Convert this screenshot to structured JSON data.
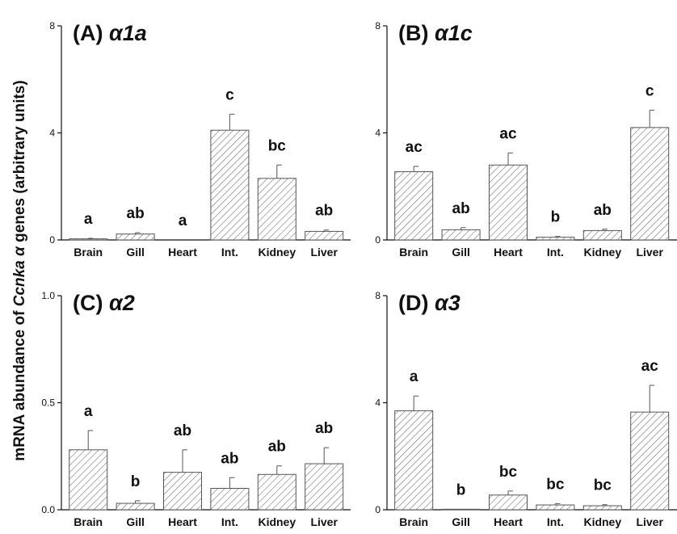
{
  "ylabel": {
    "prefix": "mRNA abundance of ",
    "gene": "Ccnka α",
    "suffix": " genes (arbitrary units)"
  },
  "chart_data": [
    {
      "type": "bar",
      "title_letter": "(A)",
      "title_gene": "α1a",
      "categories": [
        "Brain",
        "Gill",
        "Heart",
        "Int.",
        "Kidney",
        "Liver"
      ],
      "values": [
        0.04,
        0.22,
        0.0,
        4.1,
        2.3,
        0.32
      ],
      "errors": [
        0.02,
        0.05,
        0.0,
        0.6,
        0.5,
        0.05
      ],
      "sig": [
        "a",
        "ab",
        "a",
        "c",
        "bc",
        "ab"
      ],
      "ylim": [
        0,
        8
      ],
      "yticks": [
        "0",
        "4",
        "8"
      ]
    },
    {
      "type": "bar",
      "title_letter": "(B)",
      "title_gene": "α1c",
      "categories": [
        "Brain",
        "Gill",
        "Heart",
        "Int.",
        "Kidney",
        "Liver"
      ],
      "values": [
        2.55,
        0.38,
        2.8,
        0.1,
        0.35,
        4.2
      ],
      "errors": [
        0.2,
        0.08,
        0.45,
        0.03,
        0.05,
        0.65
      ],
      "sig": [
        "ac",
        "ab",
        "ac",
        "b",
        "ab",
        "c"
      ],
      "ylim": [
        0,
        8
      ],
      "yticks": [
        "0",
        "4",
        "8"
      ]
    },
    {
      "type": "bar",
      "title_letter": "(C)",
      "title_gene": "α2",
      "categories": [
        "Brain",
        "Gill",
        "Heart",
        "Int.",
        "Kidney",
        "Liver"
      ],
      "values": [
        0.28,
        0.03,
        0.175,
        0.1,
        0.165,
        0.215
      ],
      "errors": [
        0.09,
        0.012,
        0.105,
        0.05,
        0.04,
        0.075
      ],
      "sig": [
        "a",
        "b",
        "ab",
        "ab",
        "ab",
        "ab"
      ],
      "ylim": [
        0,
        1.0
      ],
      "yticks": [
        "0.0",
        "0.5",
        "1.0"
      ]
    },
    {
      "type": "bar",
      "title_letter": "(D)",
      "title_gene": "α3",
      "categories": [
        "Brain",
        "Gill",
        "Heart",
        "Int.",
        "Kidney",
        "Liver"
      ],
      "values": [
        3.7,
        0.02,
        0.55,
        0.18,
        0.15,
        3.65
      ],
      "errors": [
        0.55,
        0.0,
        0.15,
        0.05,
        0.04,
        1.0
      ],
      "sig": [
        "a",
        "b",
        "bc",
        "bc",
        "bc",
        "ac"
      ],
      "ylim": [
        0,
        8
      ],
      "yticks": [
        "0",
        "4",
        "8"
      ]
    }
  ]
}
